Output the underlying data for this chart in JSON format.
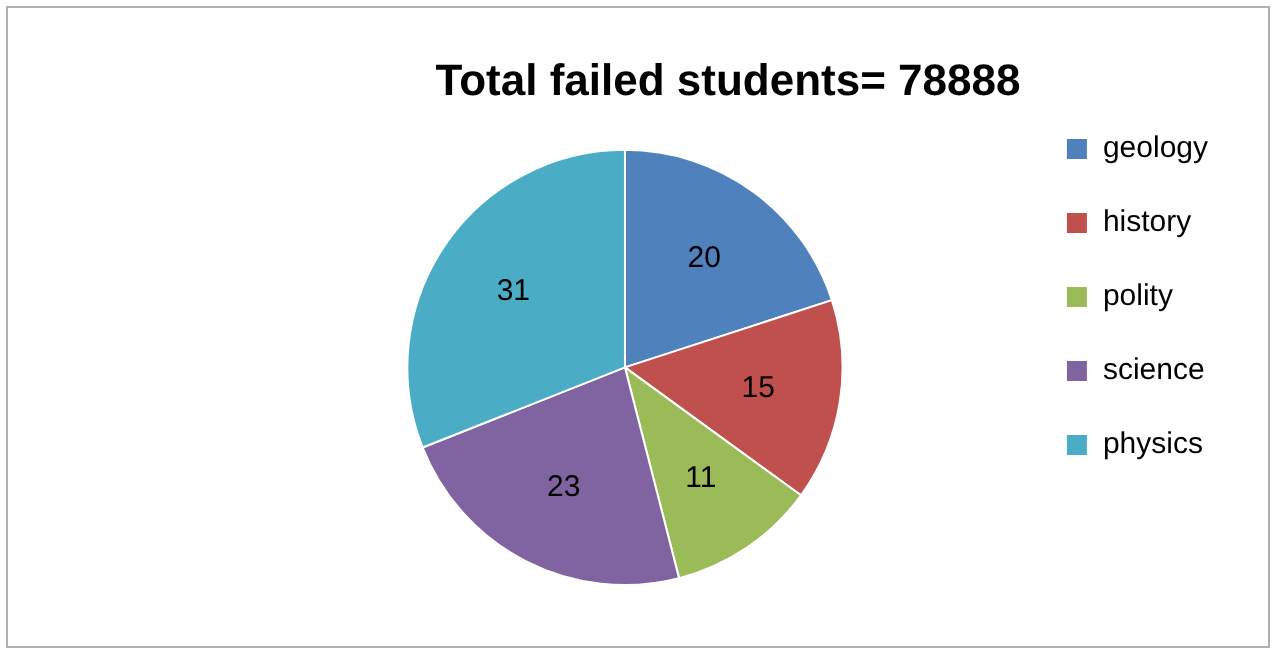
{
  "chart_data": {
    "type": "pie",
    "title": "Total failed students= 78888",
    "categories": [
      "geology",
      "history",
      "polity",
      "science",
      "physics"
    ],
    "values": [
      20,
      15,
      11,
      23,
      31
    ],
    "colors": [
      "#4f81bd",
      "#c0504d",
      "#9bbb59",
      "#8064a2",
      "#4bacc6"
    ],
    "data_labels": true,
    "legend": "right"
  }
}
